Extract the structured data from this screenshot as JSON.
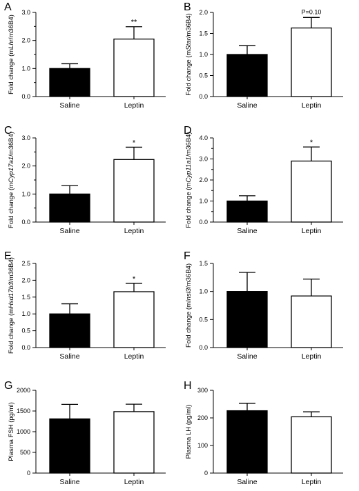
{
  "chart_data": [
    {
      "panel": "A",
      "type": "bar",
      "categories": [
        "Saline",
        "Leptin"
      ],
      "values": [
        1.0,
        2.05
      ],
      "errors": [
        0.17,
        0.44
      ],
      "ylabel_prefix": "Fold change (m",
      "ylabel_italic": "Lhr",
      "ylabel_suffix": "/m36B4)",
      "ylim": [
        0,
        3.0
      ],
      "yticks": [
        "0.0",
        "1.0",
        "2.0",
        "3.0"
      ],
      "yminor": 0.5,
      "annotation": "**",
      "annotation_index": 1
    },
    {
      "panel": "B",
      "type": "bar",
      "categories": [
        "Saline",
        "Leptin"
      ],
      "values": [
        1.0,
        1.63
      ],
      "errors": [
        0.21,
        0.25
      ],
      "ylabel_prefix": "Fold change (m",
      "ylabel_italic": "Star",
      "ylabel_suffix": "/m36B4)",
      "ylim": [
        0,
        2.0
      ],
      "yticks": [
        "0.0",
        "0.5",
        "1.0",
        "1.5",
        "2.0"
      ],
      "annotation": "P=0.10",
      "annotation_index": 1
    },
    {
      "panel": "C",
      "type": "bar",
      "categories": [
        "Saline",
        "Leptin"
      ],
      "values": [
        1.0,
        2.23
      ],
      "errors": [
        0.3,
        0.44
      ],
      "ylabel_prefix": "Fold change (m",
      "ylabel_italic": "Cyp17a1",
      "ylabel_suffix": "/m36B4)",
      "ylim": [
        0,
        3.0
      ],
      "yticks": [
        "0.0",
        "1.0",
        "2.0",
        "3.0"
      ],
      "yminor": 0.5,
      "annotation": "*",
      "annotation_index": 1
    },
    {
      "panel": "D",
      "type": "bar",
      "categories": [
        "Saline",
        "Leptin"
      ],
      "values": [
        1.0,
        2.9
      ],
      "errors": [
        0.25,
        0.67
      ],
      "ylabel_prefix": "Fold change (m",
      "ylabel_italic": "Cyp11a1",
      "ylabel_suffix": "/m36B4)",
      "ylim": [
        0,
        4.0
      ],
      "yticks": [
        "0.0",
        "1.0",
        "2.0",
        "3.0",
        "4.0"
      ],
      "yminor": 0.5,
      "annotation": "*",
      "annotation_index": 1
    },
    {
      "panel": "E",
      "type": "bar",
      "categories": [
        "Saline",
        "Leptin"
      ],
      "values": [
        1.0,
        1.66
      ],
      "errors": [
        0.3,
        0.25
      ],
      "ylabel_prefix": "Fold change (m",
      "ylabel_italic": "Hsd17b3",
      "ylabel_suffix": "/m36B4)",
      "ylim": [
        0,
        2.5
      ],
      "yticks": [
        "0.0",
        "0.5",
        "1.0",
        "1.5",
        "2.0",
        "2.5"
      ],
      "annotation": "*",
      "annotation_index": 1
    },
    {
      "panel": "F",
      "type": "bar",
      "categories": [
        "Saline",
        "Leptin"
      ],
      "values": [
        1.0,
        0.92
      ],
      "errors": [
        0.34,
        0.3
      ],
      "ylabel_prefix": "Fold change (m",
      "ylabel_italic": "Insl3",
      "ylabel_suffix": "/m36B4)",
      "ylim": [
        0,
        1.5
      ],
      "yticks": [
        "0.0",
        "0.5",
        "1.0",
        "1.5"
      ]
    },
    {
      "panel": "G",
      "type": "bar",
      "categories": [
        "Saline",
        "Leptin"
      ],
      "values": [
        1310,
        1485
      ],
      "errors": [
        350,
        180
      ],
      "ylabel_prefix": "Plasma FSH (pg/ml)",
      "ylabel_italic": "",
      "ylabel_suffix": "",
      "ylim": [
        0,
        2000
      ],
      "yticks": [
        "0",
        "500",
        "1000",
        "1500",
        "2000"
      ]
    },
    {
      "panel": "H",
      "type": "bar",
      "categories": [
        "Saline",
        "Leptin"
      ],
      "values": [
        226,
        204
      ],
      "errors": [
        27,
        18
      ],
      "ylabel_prefix": "Plasma LH (pg/ml)",
      "ylabel_italic": "",
      "ylabel_suffix": "",
      "ylim": [
        0,
        300
      ],
      "yticks": [
        "0",
        "100",
        "200",
        "300"
      ]
    }
  ],
  "colors": {
    "saline": "#000000",
    "leptin": "#ffffff",
    "axis": "#000000"
  }
}
